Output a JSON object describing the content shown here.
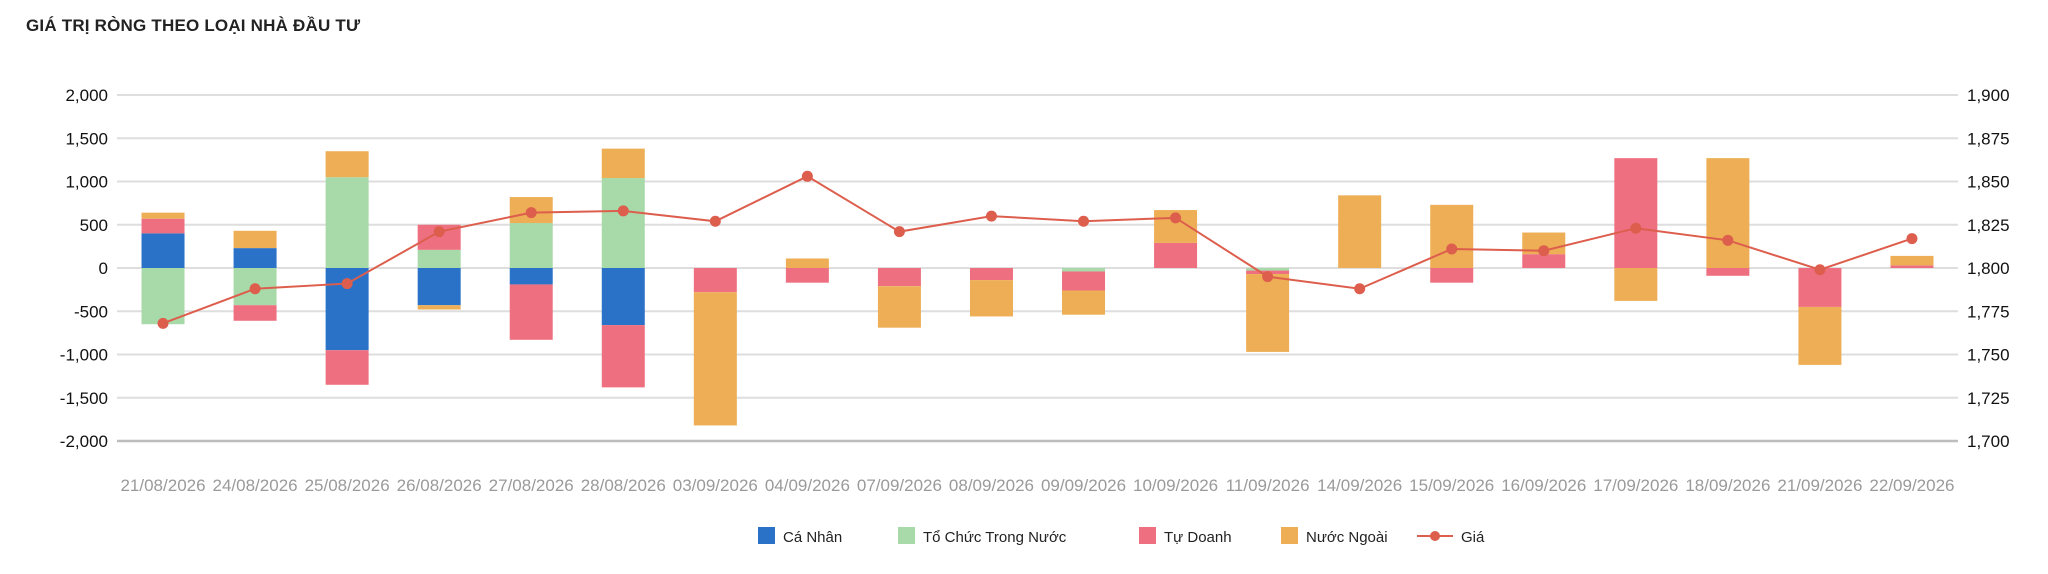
{
  "title": "GIÁ TRỊ RÒNG THEO LOẠI NHÀ ĐẦU TƯ",
  "chart_data": {
    "type": "bar",
    "stacked": true,
    "categories": [
      "21/08/2026",
      "24/08/2026",
      "25/08/2026",
      "26/08/2026",
      "27/08/2026",
      "28/08/2026",
      "03/09/2026",
      "04/09/2026",
      "07/09/2026",
      "08/09/2026",
      "09/09/2026",
      "10/09/2026",
      "11/09/2026",
      "14/09/2026",
      "15/09/2026",
      "16/09/2026",
      "17/09/2026",
      "18/09/2026",
      "21/09/2026",
      "22/09/2026"
    ],
    "series": [
      {
        "name": "Cá Nhân",
        "type": "bar",
        "color": "#2a72c7",
        "values": [
          400,
          230,
          -950,
          -430,
          -190,
          -660,
          0,
          0,
          0,
          0,
          0,
          0,
          0,
          0,
          0,
          0,
          0,
          0,
          0,
          0
        ]
      },
      {
        "name": "Tổ Chức Trong Nước",
        "type": "bar",
        "color": "#a8d9a8",
        "values": [
          -650,
          -430,
          1050,
          210,
          520,
          1040,
          0,
          0,
          0,
          0,
          -40,
          0,
          -30,
          0,
          0,
          0,
          0,
          0,
          0,
          0
        ]
      },
      {
        "name": "Tự Doanh",
        "type": "bar",
        "color": "#ee7080",
        "values": [
          170,
          -180,
          -400,
          290,
          -640,
          -720,
          -280,
          -170,
          -210,
          -140,
          -220,
          290,
          -40,
          0,
          -170,
          160,
          1270,
          -90,
          -450,
          30
        ]
      },
      {
        "name": "Nước Ngoài",
        "type": "bar",
        "color": "#edae55",
        "values": [
          70,
          200,
          300,
          -50,
          300,
          340,
          -1540,
          110,
          -480,
          -420,
          -280,
          380,
          -900,
          840,
          730,
          250,
          -380,
          1270,
          -670,
          110
        ]
      },
      {
        "name": "Giá",
        "type": "line",
        "color": "#dd5e4d",
        "axis": "right",
        "values": [
          1768,
          1788,
          1791,
          1821,
          1832,
          1833,
          1827,
          1853,
          1821,
          1830,
          1827,
          1829,
          1795,
          1788,
          1811,
          1810,
          1823,
          1816,
          1799,
          1817
        ]
      }
    ],
    "y_left": {
      "min": -2000,
      "max": 2000,
      "step": 500,
      "tick_labels": [
        "-2,000",
        "-1,500",
        "-1,000",
        "-500",
        "0",
        "500",
        "1,000",
        "1,500",
        "2,000"
      ]
    },
    "y_right": {
      "min": 1700,
      "max": 1900,
      "step": 25,
      "tick_labels": [
        "1,700",
        "1,725",
        "1,750",
        "1,775",
        "1,800",
        "1,825",
        "1,850",
        "1,875",
        "1,900"
      ]
    },
    "grid": true,
    "legend_position": "bottom-center"
  }
}
